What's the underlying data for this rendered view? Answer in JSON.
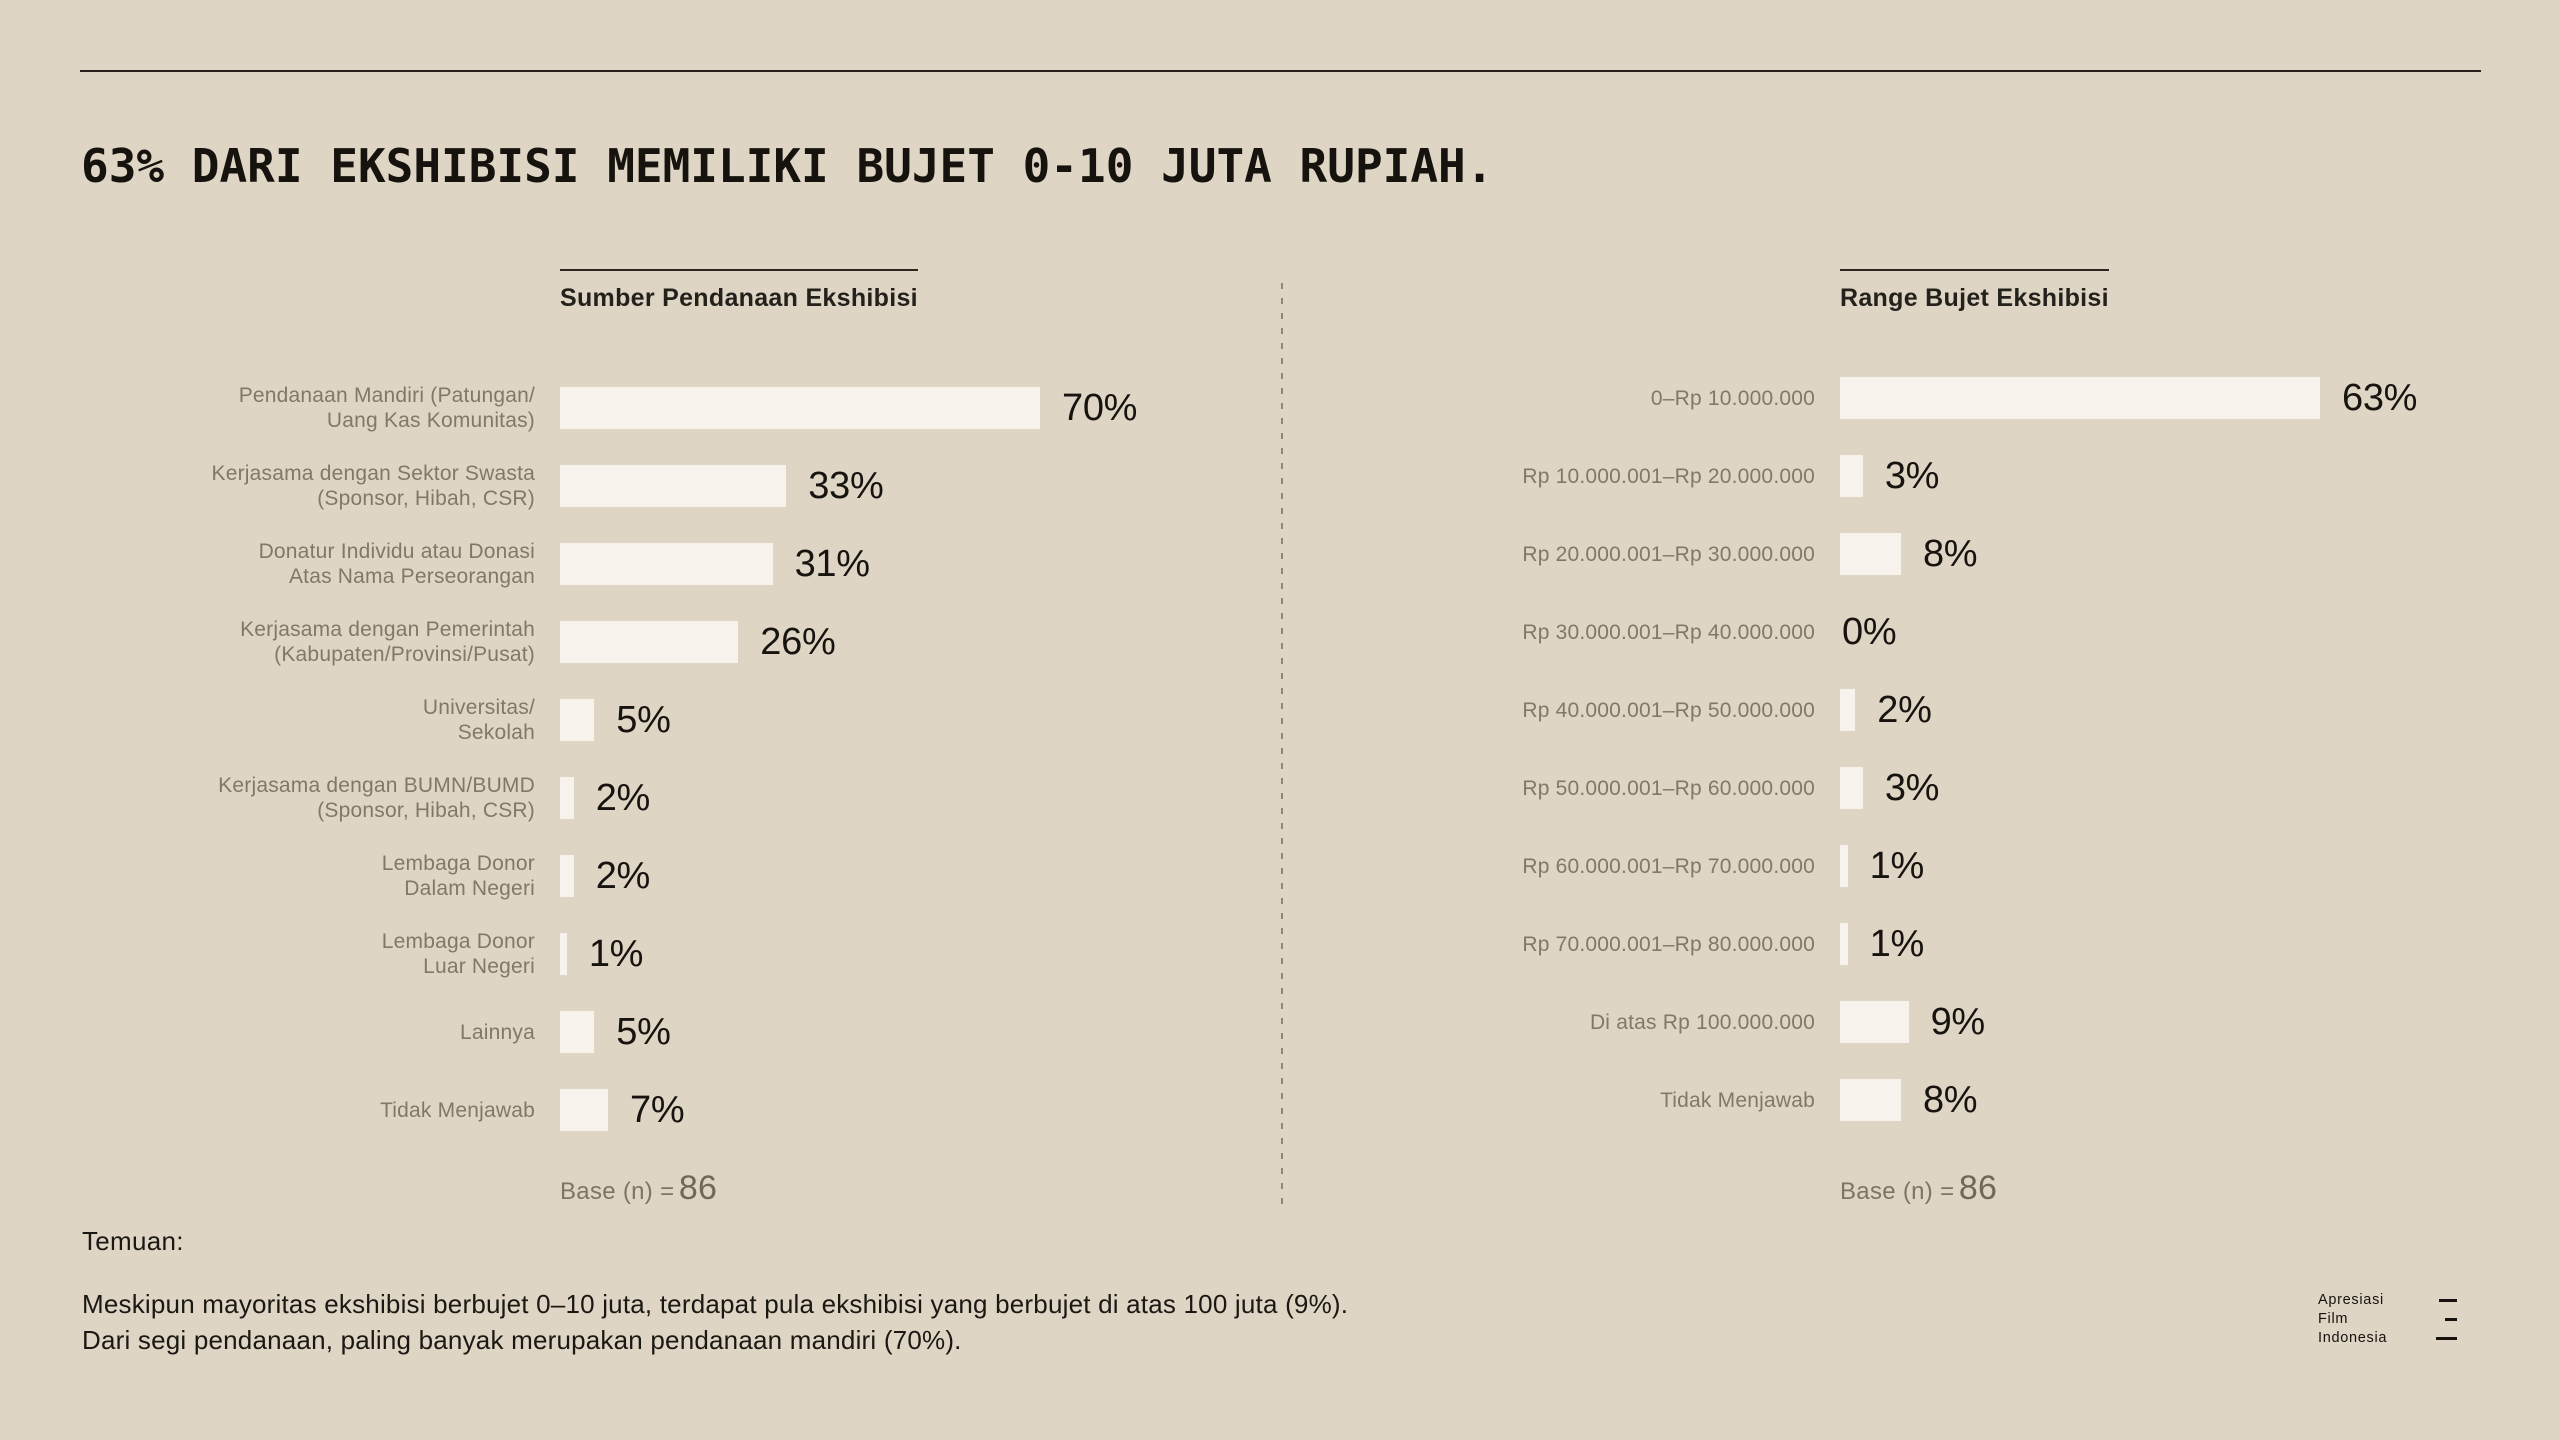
{
  "page": {
    "title": "63% DARI EKSHIBISI MEMILIKI BUJET 0-10 JUTA RUPIAH."
  },
  "colors": {
    "background": "#ded5c5",
    "bar_fill": "#f7f3ec",
    "label_muted": "#80786a",
    "text_dark": "#1b1813",
    "rule": "#27211a",
    "divider": "#8f8678"
  },
  "chart_data": [
    {
      "type": "bar",
      "orientation": "horizontal",
      "title": "Sumber Pendanaan Ekshibisi",
      "unit": "%",
      "categories": [
        "Pendanaan Mandiri (Patungan/\nUang Kas Komunitas)",
        "Kerjasama dengan Sektor Swasta\n(Sponsor, Hibah, CSR)",
        "Donatur Individu atau Donasi\nAtas Nama Perseorangan",
        "Kerjasama dengan Pemerintah\n(Kabupaten/Provinsi/Pusat)",
        "Universitas/\nSekolah",
        "Kerjasama dengan BUMN/BUMD\n(Sponsor, Hibah, CSR)",
        "Lembaga Donor\nDalam Negeri",
        "Lembaga Donor\nLuar Negeri",
        "Lainnya",
        "Tidak Menjawab"
      ],
      "values": [
        70,
        33,
        31,
        26,
        5,
        2,
        2,
        1,
        5,
        7
      ],
      "value_labels": [
        "70%",
        "33%",
        "31%",
        "26%",
        "5%",
        "2%",
        "2%",
        "1%",
        "5%",
        "7%"
      ],
      "xlim": [
        0,
        70
      ],
      "grid": false,
      "base_label": "Base (n) =",
      "base_n": "86"
    },
    {
      "type": "bar",
      "orientation": "horizontal",
      "title": "Range Bujet Ekshibisi",
      "unit": "%",
      "categories": [
        "0–Rp 10.000.000",
        "Rp 10.000.001–Rp 20.000.000",
        "Rp 20.000.001–Rp 30.000.000",
        "Rp 30.000.001–Rp 40.000.000",
        "Rp 40.000.001–Rp 50.000.000",
        "Rp 50.000.001–Rp 60.000.000",
        "Rp 60.000.001–Rp 70.000.000",
        "Rp 70.000.001–Rp 80.000.000",
        "Di atas Rp 100.000.000",
        "Tidak Menjawab"
      ],
      "values": [
        63,
        3,
        8,
        0,
        2,
        3,
        1,
        1,
        9,
        8
      ],
      "value_labels": [
        "63%",
        "3%",
        "8%",
        "0%",
        "2%",
        "3%",
        "1%",
        "1%",
        "9%",
        "8%"
      ],
      "xlim": [
        0,
        63
      ],
      "grid": false,
      "base_label": "Base (n) =",
      "base_n": "86"
    }
  ],
  "findings": {
    "heading": "Temuan:",
    "lines": [
      "Meskipun mayoritas ekshibisi berbujet 0–10 juta, terdapat pula ekshibisi yang berbujet di atas 100 juta (9%).",
      "Dari segi pendanaan, paling banyak merupakan pendanaan mandiri (70%)."
    ]
  },
  "logo": {
    "lines": [
      "Apresiasi",
      "Film",
      "Indonesia"
    ]
  }
}
